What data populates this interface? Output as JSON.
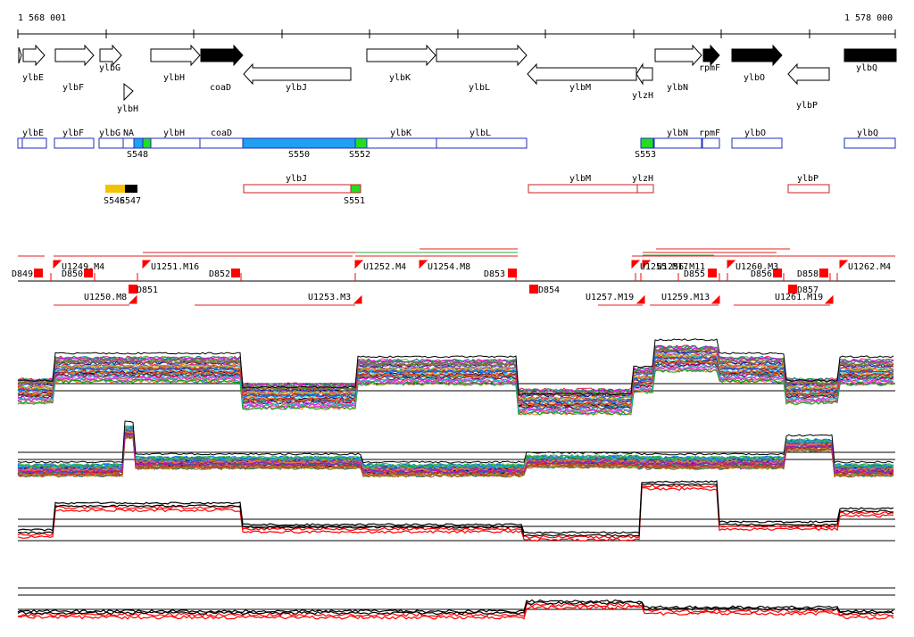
{
  "coords": {
    "start": "1 568 001",
    "end": "1 578 000"
  },
  "colors": {
    "gene_outline": "#000000",
    "seg_outline": "#1f2fb8",
    "seg_fill_blue": "#1fa0f0",
    "seg_fill_green": "#22dd22",
    "seg_fill_yellow": "#f2c200",
    "seg_fill_black": "#000000",
    "antisense_outline": "#cc2222",
    "marker_red": "#ff0000",
    "line_red": "#e02020",
    "line_green": "#33aa33",
    "track_black": "#000000",
    "track_red": "#ff0000"
  },
  "genes": [
    {
      "name": "ylbE",
      "label": "ylbE"
    },
    {
      "name": "ylbF",
      "label": "ylbF"
    },
    {
      "name": "ylbG",
      "label": "ylbG"
    },
    {
      "name": "ylbH",
      "label": "ylbH"
    },
    {
      "name": "ylbH-small",
      "label": "ylbH"
    },
    {
      "name": "coaD",
      "label": "coaD"
    },
    {
      "name": "ylbJ",
      "label": "ylbJ"
    },
    {
      "name": "ylbK",
      "label": "ylbK"
    },
    {
      "name": "ylbL",
      "label": "ylbL"
    },
    {
      "name": "ylbM",
      "label": "ylbM"
    },
    {
      "name": "ylzH",
      "label": "ylzH"
    },
    {
      "name": "ylbN",
      "label": "ylbN"
    },
    {
      "name": "rpmF",
      "label": "rpmF"
    },
    {
      "name": "ylbO",
      "label": "ylbO"
    },
    {
      "name": "ylbP",
      "label": "ylbP"
    },
    {
      "name": "ylbQ",
      "label": "ylbQ"
    }
  ],
  "sense_labels": [
    "ylbE",
    "ylbF",
    "ylbG",
    "NA",
    "ylbH",
    "coaD",
    "ylbK",
    "ylbL",
    "ylbN",
    "rpmF",
    "ylbO",
    "ylbQ"
  ],
  "sense_ids": [
    "S548",
    "S550",
    "S552",
    "S553"
  ],
  "antisense_labels": [
    "ylbJ",
    "ylbM",
    "ylzH",
    "ylbP"
  ],
  "antisense_ids": [
    "S546",
    "S547",
    "S551"
  ],
  "upshifts": [
    "U1249.M4",
    "U1251.M16",
    "U1252.M4",
    "U1254.M8",
    "U1255.M17",
    "U1256.M11",
    "U1260.M3",
    "U1262.M4",
    "U1250.M8",
    "U1253.M3",
    "U1257.M19",
    "U1259.M13",
    "U1261.M19"
  ],
  "downshifts": [
    "D849",
    "D850",
    "D851",
    "D852",
    "D853",
    "D854",
    "D855",
    "D856",
    "D857",
    "D858"
  ]
}
